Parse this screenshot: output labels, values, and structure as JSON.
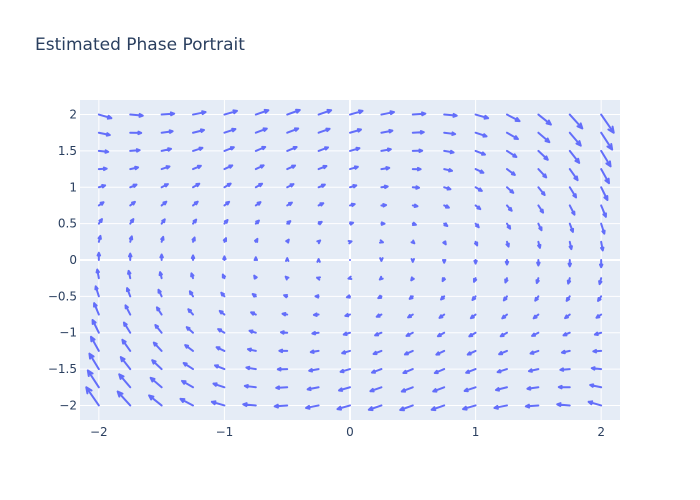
{
  "chart_data": {
    "type": "quiver",
    "title": "Estimated Phase Portrait",
    "xlabel": "",
    "ylabel": "",
    "xlim": [
      -2.15,
      2.15
    ],
    "ylim": [
      -2.2,
      2.2
    ],
    "x_ticks": [
      -2,
      -1,
      0,
      1,
      2
    ],
    "x_tick_labels": [
      "−2",
      "−1",
      "0",
      "1",
      "2"
    ],
    "y_ticks": [
      -2,
      -1.5,
      -1,
      -0.5,
      0,
      0.5,
      1,
      1.5,
      2
    ],
    "y_tick_labels": [
      "−2",
      "−1.5",
      "−1",
      "−0.5",
      "0",
      "0.5",
      "1",
      "1.5",
      "2"
    ],
    "grid": true,
    "legend": "none",
    "colors": {
      "arrow": "#636efa",
      "plot_background": "#e5ecf6",
      "grid": "#ffffff",
      "text": "#2a3f5f"
    },
    "grid_x_range": [
      -2,
      2
    ],
    "grid_y_range": [
      -2,
      2
    ],
    "grid_count": 17,
    "field": {
      "dx": "y",
      "dy": "-x + 0.5*(1 - x^2)*y",
      "arrow_scale": 0.05
    }
  }
}
